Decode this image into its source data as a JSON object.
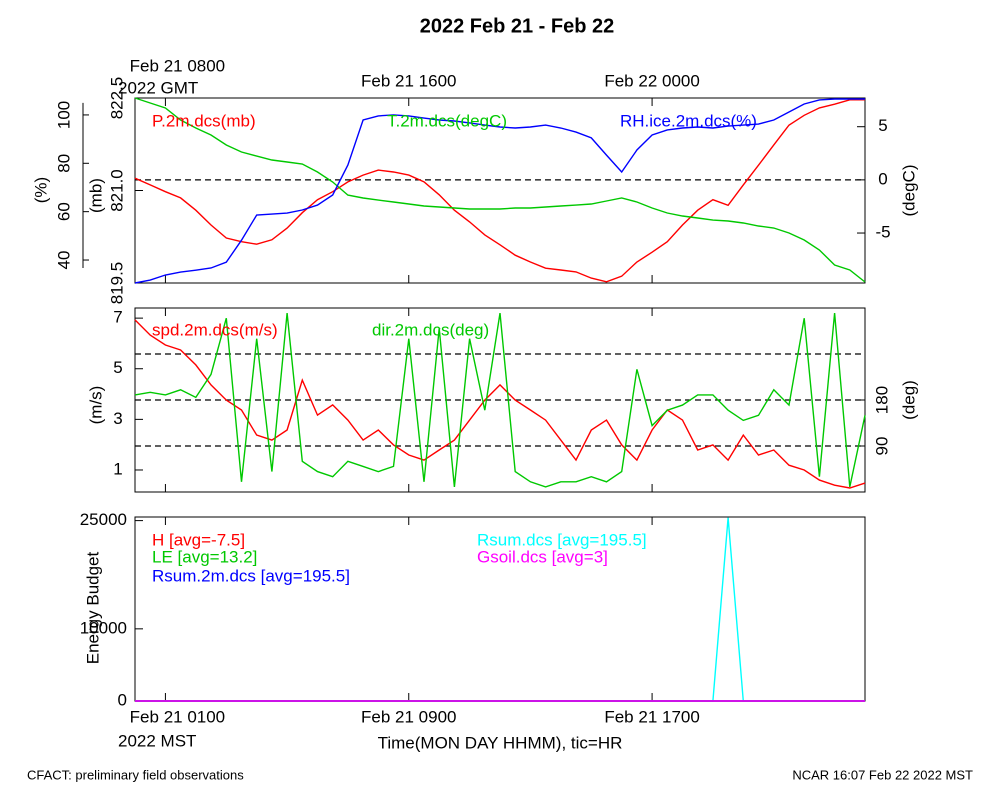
{
  "title": "2022 Feb 21 - Feb 22",
  "footer_left": "CFACT: preliminary field observations",
  "footer_right": "NCAR 16:07 Feb 22 2022 MST",
  "chart_data": [
    {
      "type": "line",
      "x_tz_label": "2022 GMT",
      "xlim": [
        "2022-02-21T07:00Z",
        "2022-02-22T07:00Z"
      ],
      "xticks": [
        {
          "value": "2022-02-21T08:00Z",
          "label": "Feb 21 0800"
        },
        {
          "value": "2022-02-21T16:00Z",
          "label": "Feb 21 1600"
        },
        {
          "value": "2022-02-22T00:00Z",
          "label": "Feb 22 0000"
        }
      ],
      "x": [
        "2022-02-21T07:00Z",
        "2022-02-21T07:30Z",
        "2022-02-21T08:00Z",
        "2022-02-21T08:30Z",
        "2022-02-21T09:00Z",
        "2022-02-21T09:30Z",
        "2022-02-21T10:00Z",
        "2022-02-21T10:30Z",
        "2022-02-21T11:00Z",
        "2022-02-21T11:30Z",
        "2022-02-21T12:00Z",
        "2022-02-21T12:30Z",
        "2022-02-21T13:00Z",
        "2022-02-21T13:30Z",
        "2022-02-21T14:00Z",
        "2022-02-21T14:30Z",
        "2022-02-21T15:00Z",
        "2022-02-21T15:30Z",
        "2022-02-21T16:00Z",
        "2022-02-21T16:30Z",
        "2022-02-21T17:00Z",
        "2022-02-21T17:30Z",
        "2022-02-21T18:00Z",
        "2022-02-21T18:30Z",
        "2022-02-21T19:00Z",
        "2022-02-21T19:30Z",
        "2022-02-21T20:00Z",
        "2022-02-21T20:30Z",
        "2022-02-21T21:00Z",
        "2022-02-21T21:30Z",
        "2022-02-21T22:00Z",
        "2022-02-21T22:30Z",
        "2022-02-21T23:00Z",
        "2022-02-21T23:30Z",
        "2022-02-22T00:00Z",
        "2022-02-22T00:30Z",
        "2022-02-22T01:00Z",
        "2022-02-22T01:30Z",
        "2022-02-22T02:00Z",
        "2022-02-22T02:30Z",
        "2022-02-22T03:00Z",
        "2022-02-22T03:30Z",
        "2022-02-22T04:00Z",
        "2022-02-22T04:30Z",
        "2022-02-22T05:00Z",
        "2022-02-22T05:30Z",
        "2022-02-22T06:00Z",
        "2022-02-22T06:30Z",
        "2022-02-22T07:00Z"
      ],
      "ylabel": "(mb)",
      "ylim": [
        819.5,
        822.5
      ],
      "yticks": [
        819.5,
        {
          "value": 821,
          "label": "821.0"
        },
        822.5
      ],
      "y2label": "(degC)",
      "y2lim": [
        -9.7,
        7.7
      ],
      "y2ticks": [
        -5,
        0,
        5
      ],
      "y2refs": [
        0
      ],
      "y3label": "(%)",
      "y3lim": [
        30.5,
        107
      ],
      "y3ticks": [
        40,
        60,
        80,
        100
      ],
      "series": [
        {
          "name": "P.2m.dcs(mb)",
          "color": "#ff0000",
          "values": [
            821.2,
            821.09,
            820.98,
            820.88,
            820.68,
            820.44,
            820.23,
            820.17,
            820.13,
            820.2,
            820.39,
            820.64,
            820.85,
            820.98,
            821.14,
            821.25,
            821.33,
            821.3,
            821.25,
            821.14,
            820.93,
            820.68,
            820.49,
            820.28,
            820.12,
            819.95,
            819.84,
            819.74,
            819.71,
            819.68,
            819.58,
            819.52,
            819.61,
            819.84,
            820.0,
            820.17,
            820.44,
            820.68,
            820.85,
            820.76,
            821.09,
            821.41,
            821.74,
            822.06,
            822.22,
            822.34,
            822.4,
            822.47,
            822.47
          ]
        },
        {
          "name": "T.2m.dcs(degC)",
          "color": "#00c800",
          "axis": "y2",
          "values": [
            7.7,
            7.23,
            6.76,
            5.63,
            4.88,
            4.22,
            3.28,
            2.62,
            2.24,
            1.87,
            1.68,
            1.49,
            0.74,
            -0.2,
            -1.43,
            -1.71,
            -1.9,
            -2.08,
            -2.27,
            -2.46,
            -2.55,
            -2.65,
            -2.74,
            -2.74,
            -2.74,
            -2.65,
            -2.65,
            -2.55,
            -2.46,
            -2.37,
            -2.27,
            -1.99,
            -1.71,
            -2.08,
            -2.65,
            -3.12,
            -3.4,
            -3.59,
            -3.78,
            -3.87,
            -4.06,
            -4.34,
            -4.53,
            -5.0,
            -5.66,
            -6.6,
            -8.01,
            -8.48,
            -9.61
          ]
        },
        {
          "name": "RH.ice.2m.dcs(%)",
          "color": "#0000ff",
          "axis": "y3",
          "values": [
            30.5,
            31.7,
            33.8,
            35.0,
            35.8,
            36.7,
            39.1,
            48.2,
            58.6,
            59.0,
            59.4,
            60.7,
            62.7,
            66.9,
            79.3,
            97.9,
            99.6,
            100.0,
            99.6,
            98.7,
            97.9,
            97.5,
            96.7,
            95.8,
            95.0,
            94.6,
            95.0,
            95.8,
            94.6,
            92.9,
            90.5,
            83.4,
            76.4,
            85.5,
            91.7,
            93.8,
            94.6,
            95.0,
            94.6,
            95.4,
            95.8,
            96.2,
            97.9,
            101.2,
            104.5,
            106.2,
            106.6,
            106.6,
            106.6
          ]
        }
      ]
    },
    {
      "type": "line",
      "xlim": [
        "2022-02-21T07:00Z",
        "2022-02-22T07:00Z"
      ],
      "x": [
        "2022-02-21T07:00Z",
        "2022-02-21T07:30Z",
        "2022-02-21T08:00Z",
        "2022-02-21T08:30Z",
        "2022-02-21T09:00Z",
        "2022-02-21T09:30Z",
        "2022-02-21T10:00Z",
        "2022-02-21T10:30Z",
        "2022-02-21T11:00Z",
        "2022-02-21T11:30Z",
        "2022-02-21T12:00Z",
        "2022-02-21T12:30Z",
        "2022-02-21T13:00Z",
        "2022-02-21T13:30Z",
        "2022-02-21T14:00Z",
        "2022-02-21T14:30Z",
        "2022-02-21T15:00Z",
        "2022-02-21T15:30Z",
        "2022-02-21T16:00Z",
        "2022-02-21T16:30Z",
        "2022-02-21T17:00Z",
        "2022-02-21T17:30Z",
        "2022-02-21T18:00Z",
        "2022-02-21T18:30Z",
        "2022-02-21T19:00Z",
        "2022-02-21T19:30Z",
        "2022-02-21T20:00Z",
        "2022-02-21T20:30Z",
        "2022-02-21T21:00Z",
        "2022-02-21T21:30Z",
        "2022-02-21T22:00Z",
        "2022-02-21T22:30Z",
        "2022-02-21T23:00Z",
        "2022-02-21T23:30Z",
        "2022-02-22T00:00Z",
        "2022-02-22T00:30Z",
        "2022-02-22T01:00Z",
        "2022-02-22T01:30Z",
        "2022-02-22T02:00Z",
        "2022-02-22T02:30Z",
        "2022-02-22T03:00Z",
        "2022-02-22T03:30Z",
        "2022-02-22T04:00Z",
        "2022-02-22T04:30Z",
        "2022-02-22T05:00Z",
        "2022-02-22T05:30Z",
        "2022-02-22T06:00Z",
        "2022-02-22T06:30Z",
        "2022-02-22T07:00Z"
      ],
      "ylabel": "(m/s)",
      "ylim": [
        0.13,
        7.4
      ],
      "yticks": [
        1,
        3,
        5,
        7
      ],
      "y2label": "(deg)",
      "y2lim": [
        0,
        360
      ],
      "y2ticks": [
        90,
        180
      ],
      "y2refs": [
        90,
        180,
        270
      ],
      "series": [
        {
          "name": "spd.2m.dcs(m/s)",
          "color": "#ff0000",
          "values": [
            6.93,
            6.33,
            5.94,
            5.74,
            5.15,
            4.36,
            3.76,
            3.37,
            2.38,
            2.18,
            2.58,
            4.55,
            3.17,
            3.57,
            2.97,
            2.18,
            2.58,
            1.99,
            1.59,
            1.39,
            1.79,
            2.18,
            2.97,
            3.76,
            4.36,
            3.76,
            3.37,
            2.97,
            2.18,
            1.39,
            2.58,
            2.97,
            1.99,
            1.39,
            2.58,
            3.37,
            2.97,
            1.79,
            1.99,
            1.39,
            2.38,
            1.59,
            1.79,
            1.19,
            1.0,
            0.6,
            0.4,
            0.29,
            0.48
          ]
        },
        {
          "name": "dir.2m.dcs(deg)",
          "color": "#00c800",
          "axis": "y2",
          "values": [
            190,
            195,
            190,
            200,
            185,
            230,
            340,
            20,
            300,
            40,
            350,
            60,
            40,
            30,
            60,
            50,
            40,
            50,
            300,
            20,
            320,
            10,
            300,
            160,
            350,
            40,
            20,
            10,
            20,
            20,
            30,
            20,
            40,
            240,
            130,
            160,
            170,
            190,
            190,
            160,
            140,
            150,
            200,
            170,
            340,
            30,
            350,
            10,
            150
          ]
        }
      ]
    },
    {
      "type": "line",
      "x_tz_label": "2022 MST",
      "xlabel": "Time(MON DAY HHMM), tic=HR",
      "xlim": [
        "2022-02-21T07:00Z",
        "2022-02-22T07:00Z"
      ],
      "xticks": [
        {
          "value": "2022-02-21T08:00Z",
          "label": "Feb 21 0100"
        },
        {
          "value": "2022-02-21T16:00Z",
          "label": "Feb 21 0900"
        },
        {
          "value": "2022-02-22T00:00Z",
          "label": "Feb 21 1700"
        }
      ],
      "x": [
        "2022-02-21T07:00Z",
        "2022-02-21T07:30Z",
        "2022-02-21T08:00Z",
        "2022-02-21T08:30Z",
        "2022-02-21T09:00Z",
        "2022-02-21T09:30Z",
        "2022-02-21T10:00Z",
        "2022-02-21T10:30Z",
        "2022-02-21T11:00Z",
        "2022-02-21T11:30Z",
        "2022-02-21T12:00Z",
        "2022-02-21T12:30Z",
        "2022-02-21T13:00Z",
        "2022-02-21T13:30Z",
        "2022-02-21T14:00Z",
        "2022-02-21T14:30Z",
        "2022-02-21T15:00Z",
        "2022-02-21T15:30Z",
        "2022-02-21T16:00Z",
        "2022-02-21T16:30Z",
        "2022-02-21T17:00Z",
        "2022-02-21T17:30Z",
        "2022-02-21T18:00Z",
        "2022-02-21T18:30Z",
        "2022-02-21T19:00Z",
        "2022-02-21T19:30Z",
        "2022-02-21T20:00Z",
        "2022-02-21T20:30Z",
        "2022-02-21T21:00Z",
        "2022-02-21T21:30Z",
        "2022-02-21T22:00Z",
        "2022-02-21T22:30Z",
        "2022-02-21T23:00Z",
        "2022-02-21T23:30Z",
        "2022-02-22T00:00Z",
        "2022-02-22T00:30Z",
        "2022-02-22T01:00Z",
        "2022-02-22T01:30Z",
        "2022-02-22T02:00Z",
        "2022-02-22T02:30Z",
        "2022-02-22T03:00Z",
        "2022-02-22T03:30Z",
        "2022-02-22T04:00Z",
        "2022-02-22T04:30Z",
        "2022-02-22T05:00Z",
        "2022-02-22T05:30Z",
        "2022-02-22T06:00Z",
        "2022-02-22T06:30Z",
        "2022-02-22T07:00Z"
      ],
      "ylabel": "Energy Budget",
      "ylim": [
        0,
        25500
      ],
      "yticks": [
        0,
        10000,
        25000
      ],
      "series": [
        {
          "name": "Rsum.dcs [avg=195.5]",
          "color": "#00ffff",
          "values": [
            0,
            0,
            0,
            0,
            0,
            0,
            0,
            0,
            0,
            0,
            0,
            0,
            0,
            0,
            0,
            0,
            0,
            0,
            0,
            0,
            0,
            0,
            0,
            0,
            0,
            0,
            0,
            0,
            0,
            0,
            0,
            0,
            0,
            0,
            0,
            0,
            0,
            0,
            0,
            25400,
            0,
            0,
            0,
            0,
            0,
            0,
            0,
            0,
            0
          ]
        },
        {
          "name": "H [avg=-7.5]",
          "color": "#ff0000",
          "values": [
            0,
            0,
            0,
            0,
            0,
            0,
            0,
            0,
            0,
            0,
            0,
            0,
            0,
            0,
            0,
            0,
            0,
            0,
            0,
            0,
            0,
            0,
            0,
            0,
            0,
            0,
            0,
            0,
            0,
            0,
            0,
            0,
            0,
            0,
            0,
            0,
            0,
            0,
            0,
            0,
            0,
            0,
            0,
            0,
            0,
            0,
            0,
            0,
            0
          ]
        },
        {
          "name": "LE [avg=13.2]",
          "color": "#00c800",
          "values": [
            0,
            0,
            0,
            0,
            0,
            0,
            0,
            0,
            0,
            0,
            0,
            0,
            0,
            0,
            0,
            0,
            0,
            0,
            0,
            0,
            0,
            0,
            0,
            0,
            0,
            0,
            0,
            0,
            0,
            0,
            0,
            0,
            0,
            0,
            0,
            0,
            0,
            0,
            0,
            0,
            0,
            0,
            0,
            0,
            0,
            0,
            0,
            0,
            0
          ]
        },
        {
          "name": "Rsum.2m.dcs [avg=195.5]",
          "color": "#0000ff",
          "values": [
            0,
            0,
            0,
            0,
            0,
            0,
            0,
            0,
            0,
            0,
            0,
            0,
            0,
            0,
            0,
            0,
            0,
            0,
            0,
            0,
            0,
            0,
            0,
            0,
            0,
            0,
            0,
            0,
            0,
            0,
            0,
            0,
            0,
            0,
            0,
            0,
            0,
            0,
            0,
            0,
            0,
            0,
            0,
            0,
            0,
            0,
            0,
            0,
            0
          ]
        },
        {
          "name": "Gsoil.dcs [avg=3]",
          "color": "#ff00ff",
          "values": [
            0,
            0,
            0,
            0,
            0,
            0,
            0,
            0,
            0,
            0,
            0,
            0,
            0,
            0,
            0,
            0,
            0,
            0,
            0,
            0,
            0,
            0,
            0,
            0,
            0,
            0,
            0,
            0,
            0,
            0,
            0,
            0,
            0,
            0,
            0,
            0,
            0,
            0,
            0,
            0,
            0,
            0,
            0,
            0,
            0,
            0,
            0,
            0,
            0
          ]
        }
      ]
    }
  ]
}
